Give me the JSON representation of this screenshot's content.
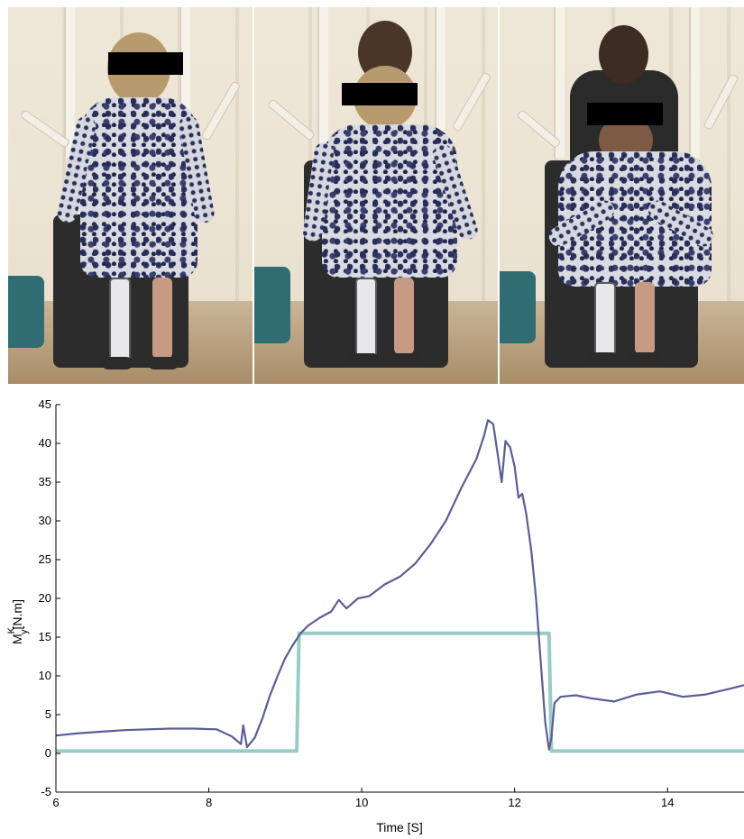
{
  "photos": [
    {
      "label": "frame-1-standing"
    },
    {
      "label": "frame-2-lowering"
    },
    {
      "label": "frame-3-seated"
    }
  ],
  "chart_data": {
    "type": "line",
    "title": "",
    "xlabel": "Time [S]",
    "ylabel": "M",
    "ylabel_sub": "y",
    "ylabel_sup": "K",
    "ylabel_unit": "[N.m]",
    "xlim": [
      6,
      15
    ],
    "ylim": [
      -5,
      45
    ],
    "xticks": [
      6,
      8,
      10,
      12,
      14
    ],
    "yticks": [
      -5,
      0,
      5,
      10,
      15,
      20,
      25,
      30,
      35,
      40,
      45
    ],
    "grid": false,
    "legend": "none",
    "colors": {
      "measured": "#5a5e96",
      "step": "#8fc6c0"
    },
    "series": [
      {
        "values_x": [
          6.0,
          6.3,
          6.6,
          6.9,
          7.2,
          7.5,
          7.8,
          8.1,
          8.3,
          8.42,
          8.45,
          8.5,
          8.6,
          8.7,
          8.8,
          8.9,
          9.0,
          9.1,
          9.2,
          9.3,
          9.45,
          9.6,
          9.7,
          9.8,
          9.95,
          10.1,
          10.3,
          10.5,
          10.7,
          10.9,
          11.1,
          11.3,
          11.5,
          11.6,
          11.65,
          11.72,
          11.78,
          11.83,
          11.88,
          11.94,
          12.0,
          12.05,
          12.1,
          12.15,
          12.22,
          12.28,
          12.34,
          12.4,
          12.45,
          12.48,
          12.52,
          12.6,
          12.8,
          13.0,
          13.3,
          13.6,
          13.9,
          14.2,
          14.5,
          14.8,
          15.0
        ],
        "values": [
          2.3,
          2.6,
          2.8,
          3.0,
          3.1,
          3.2,
          3.2,
          3.1,
          2.2,
          1.2,
          3.6,
          0.8,
          2.0,
          4.5,
          7.5,
          10.0,
          12.3,
          14.0,
          15.5,
          16.5,
          17.5,
          18.3,
          19.8,
          18.7,
          20.0,
          20.3,
          21.8,
          22.8,
          24.5,
          27.0,
          30.0,
          34.2,
          38.0,
          41.0,
          43.0,
          42.5,
          38.5,
          35.0,
          40.3,
          39.5,
          37.0,
          33.0,
          33.5,
          31.0,
          26.0,
          20.0,
          12.0,
          4.0,
          0.5,
          2.0,
          6.5,
          7.3,
          7.5,
          7.1,
          6.7,
          7.6,
          8.0,
          7.3,
          7.6,
          8.3,
          8.8
        ]
      },
      {
        "values_x": [
          6.0,
          9.15,
          9.18,
          12.45,
          12.48,
          15.0
        ],
        "values": [
          0.3,
          0.3,
          15.5,
          15.5,
          0.3,
          0.3
        ]
      }
    ]
  }
}
